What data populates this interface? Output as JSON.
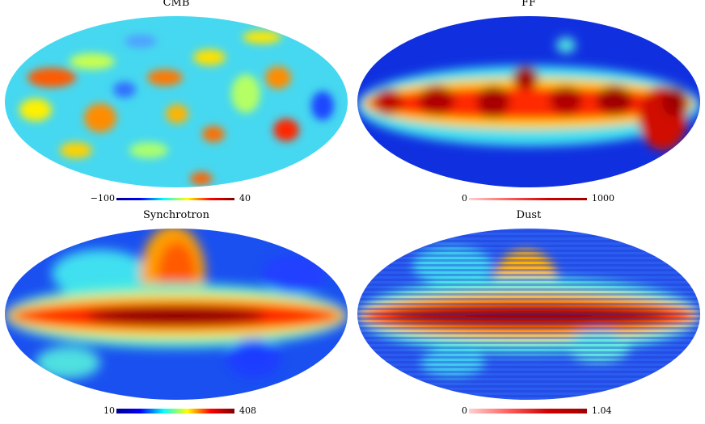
{
  "panels": [
    {
      "title": "CMB",
      "scale": {
        "min": "−100",
        "max": "40"
      },
      "colormap": "jet",
      "image": "Mollweide all-sky CMB anisotropy map, mottled blue/cyan/yellow with scattered red spots"
    },
    {
      "title": "FF",
      "scale": {
        "min": "0",
        "max": "1000"
      },
      "colormap": "red-white",
      "image": "Mollweide all-sky free-free emission map, dark red blobs along the galactic plane, blue at poles"
    },
    {
      "title": "Synchrotron",
      "scale": {
        "min": "10",
        "max": "408"
      },
      "colormap": "jet",
      "image": "Mollweide all-sky synchrotron map, bright red galactic plane and north polar spur"
    },
    {
      "title": "Dust",
      "scale": {
        "min": "0",
        "max": "1.04"
      },
      "colormap": "red-white",
      "image": "Mollweide all-sky thermal dust map, deep red galactic plane, striped blue/cyan at high latitude"
    }
  ],
  "palette": {
    "dark_blue": "#00008f",
    "blue": "#0000ff",
    "cyan": "#00ffff",
    "yellow": "#ffff00",
    "red": "#ff0000",
    "dark_red": "#800000"
  }
}
